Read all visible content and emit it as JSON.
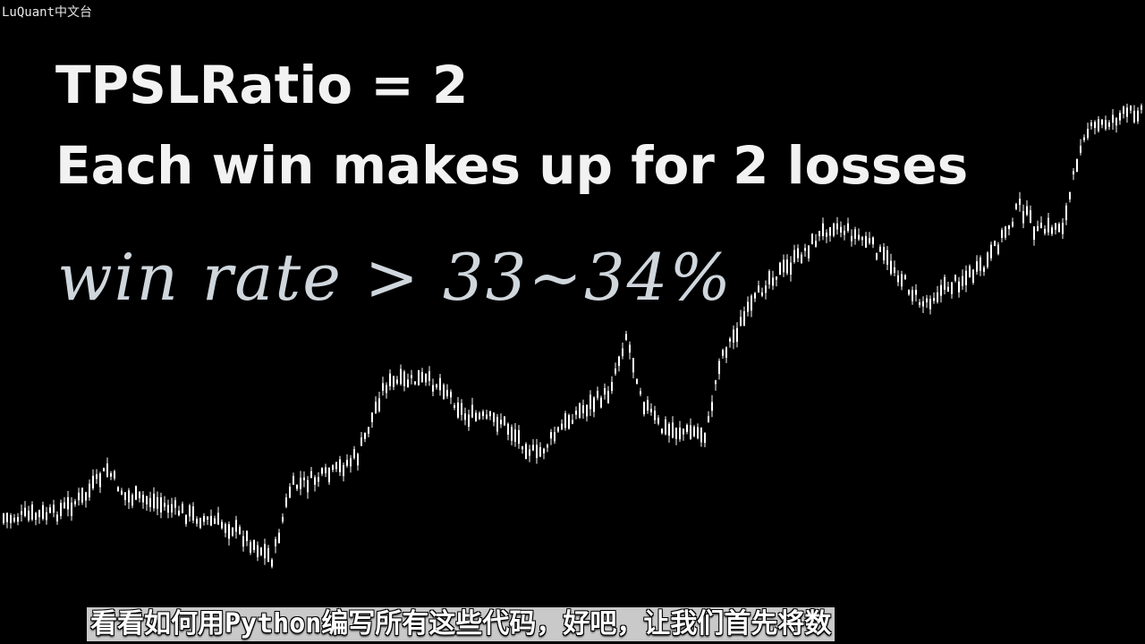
{
  "watermark": "LuQuant中文台",
  "title": {
    "line1": "TPSLRatio = 2",
    "line2": "Each win makes up for 2 losses"
  },
  "handwritten_note": "win rate > 33~34%",
  "subtitle": "看看如何用Python编写所有这些代码，好吧，让我们首先将数",
  "colors": {
    "background": "#000000",
    "text": "#f2f2f2",
    "handwriting": "#cfd6dc",
    "candles": "#ffffff",
    "subtitle_bg": "#c9c9c9"
  }
}
